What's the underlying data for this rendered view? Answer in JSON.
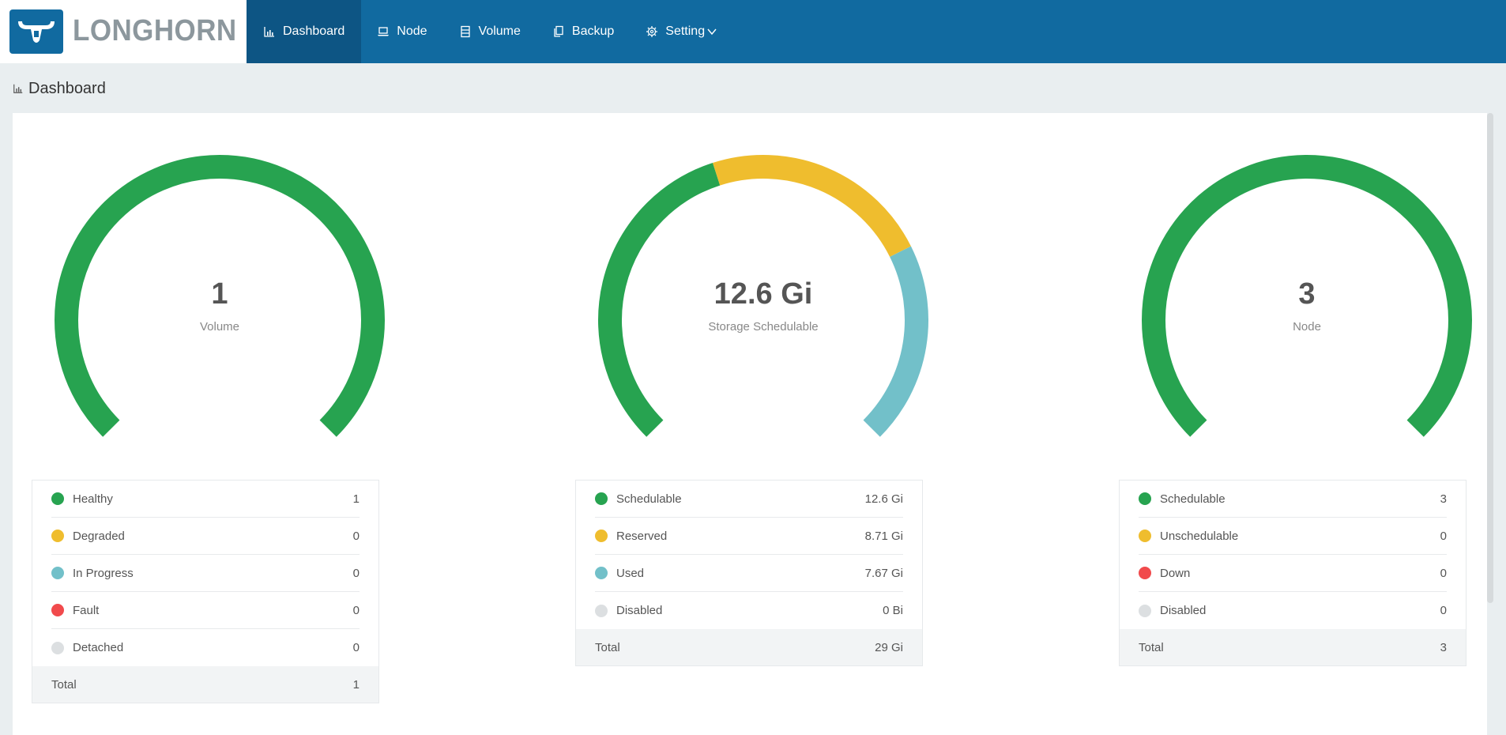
{
  "app": {
    "name": "LONGHORN"
  },
  "nav": [
    {
      "label": "Dashboard",
      "icon": "bar-chart-icon",
      "active": true
    },
    {
      "label": "Node",
      "icon": "laptop-icon",
      "active": false
    },
    {
      "label": "Volume",
      "icon": "database-icon",
      "active": false
    },
    {
      "label": "Backup",
      "icon": "copy-icon",
      "active": false
    },
    {
      "label": "Setting",
      "icon": "gear-icon",
      "active": false
    }
  ],
  "page_title": "Dashboard",
  "colors": {
    "green": "#27a350",
    "yellow": "#efbd2e",
    "teal": "#72c0c9",
    "red": "#f14a4c",
    "gray": "#dcdfe1",
    "brand": "#116aa0"
  },
  "gauges": [
    {
      "value": "1",
      "label": "Volume",
      "segments": [
        {
          "fraction": 1,
          "color": "#27a350"
        }
      ],
      "legend": [
        {
          "label": "Healthy",
          "value": "1",
          "color": "#27a350"
        },
        {
          "label": "Degraded",
          "value": "0",
          "color": "#efbd2e"
        },
        {
          "label": "In Progress",
          "value": "0",
          "color": "#72c0c9"
        },
        {
          "label": "Fault",
          "value": "0",
          "color": "#f14a4c"
        },
        {
          "label": "Detached",
          "value": "0",
          "color": "#dcdfe1"
        }
      ],
      "total_label": "Total",
      "total_value": "1"
    },
    {
      "value": "12.6 Gi",
      "label": "Storage Schedulable",
      "segments": [
        {
          "fraction": 0.434,
          "color": "#27a350"
        },
        {
          "fraction": 0.301,
          "color": "#efbd2e"
        },
        {
          "fraction": 0.265,
          "color": "#72c0c9"
        }
      ],
      "legend": [
        {
          "label": "Schedulable",
          "value": "12.6 Gi",
          "color": "#27a350"
        },
        {
          "label": "Reserved",
          "value": "8.71 Gi",
          "color": "#efbd2e"
        },
        {
          "label": "Used",
          "value": "7.67 Gi",
          "color": "#72c0c9"
        },
        {
          "label": "Disabled",
          "value": "0 Bi",
          "color": "#dcdfe1"
        }
      ],
      "total_label": "Total",
      "total_value": "29 Gi"
    },
    {
      "value": "3",
      "label": "Node",
      "segments": [
        {
          "fraction": 1,
          "color": "#27a350"
        }
      ],
      "legend": [
        {
          "label": "Schedulable",
          "value": "3",
          "color": "#27a350"
        },
        {
          "label": "Unschedulable",
          "value": "0",
          "color": "#efbd2e"
        },
        {
          "label": "Down",
          "value": "0",
          "color": "#f14a4c"
        },
        {
          "label": "Disabled",
          "value": "0",
          "color": "#dcdfe1"
        }
      ],
      "total_label": "Total",
      "total_value": "3"
    }
  ]
}
